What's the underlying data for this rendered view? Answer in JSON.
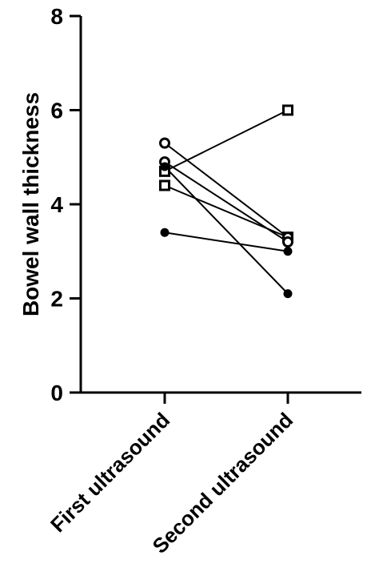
{
  "chart_data": {
    "type": "line",
    "title": "",
    "xlabel": "",
    "ylabel": "Bowel wall thickness",
    "categories": [
      "First ultrasound",
      "Second ultrasound"
    ],
    "ylim": [
      0,
      8
    ],
    "yticks": [
      0,
      2,
      4,
      6,
      8
    ],
    "grid": false,
    "legend": "none",
    "series": [
      {
        "marker": "square-open",
        "values": [
          4.7,
          6.0
        ]
      },
      {
        "marker": "square-open",
        "values": [
          4.4,
          3.3
        ]
      },
      {
        "marker": "circle-open",
        "values": [
          5.3,
          3.3
        ]
      },
      {
        "marker": "circle-open",
        "values": [
          4.9,
          3.2
        ]
      },
      {
        "marker": "circle-filled",
        "values": [
          4.8,
          2.1
        ]
      },
      {
        "marker": "circle-filled",
        "values": [
          3.4,
          3.0
        ]
      }
    ],
    "colors": {
      "axis": "#000000",
      "line": "#000000",
      "marker_fill_open": "#ffffff"
    }
  }
}
